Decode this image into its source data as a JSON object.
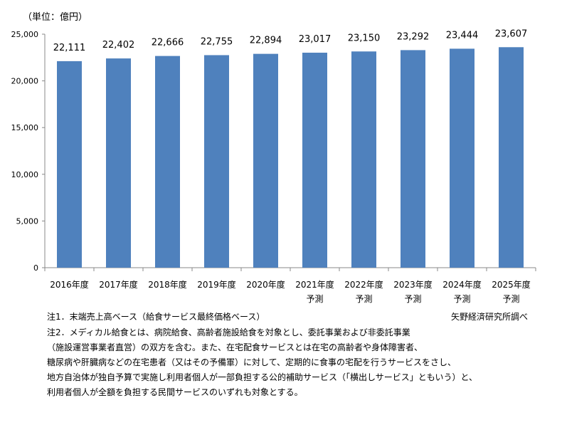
{
  "chart_data": {
    "type": "bar",
    "unit_label": "（単位：億円）",
    "categories": [
      [
        "2016年度"
      ],
      [
        "2017年度"
      ],
      [
        "2018年度"
      ],
      [
        "2019年度"
      ],
      [
        "2020年度"
      ],
      [
        "2021年度",
        "予測"
      ],
      [
        "2022年度",
        "予測"
      ],
      [
        "2023年度",
        "予測"
      ],
      [
        "2024年度",
        "予測"
      ],
      [
        "2025年度",
        "予測"
      ]
    ],
    "values": [
      22111,
      22402,
      22666,
      22755,
      22894,
      23017,
      23150,
      23292,
      23444,
      23607
    ],
    "value_labels": [
      "22,111",
      "22,402",
      "22,666",
      "22,755",
      "22,894",
      "23,017",
      "23,150",
      "23,292",
      "23,444",
      "23,607"
    ],
    "ylim": [
      0,
      25000
    ],
    "yticks": [
      0,
      5000,
      10000,
      15000,
      20000,
      25000
    ],
    "ytick_labels": [
      "0",
      "5,000",
      "10,000",
      "15,000",
      "20,000",
      "25,000"
    ],
    "bar_color": "#4f81bd",
    "grid": false
  },
  "notes": {
    "note1": "注1．末端売上高ベース（給食サービス最終価格ベース）",
    "source": "矢野経済研究所調べ",
    "note2_lines": [
      "注2．メディカル給食とは、病院給食、高齢者施設給食を対象とし、委託事業および非委託事業",
      "（施設運営事業者直営）の双方を含む。また、在宅配食サービスとは在宅の高齢者や身体障害者、",
      "糖尿病や肝臓病などの在宅患者（又はその予備軍）に対して、定期的に食事の宅配を行うサービスをさし、",
      "地方自治体が独自予算で実施し利用者個人が一部負担する公的補助サービス（「横出しサービス」ともいう）と、",
      "利用者個人が全額を負担する民間サービスのいずれも対象とする。"
    ]
  }
}
